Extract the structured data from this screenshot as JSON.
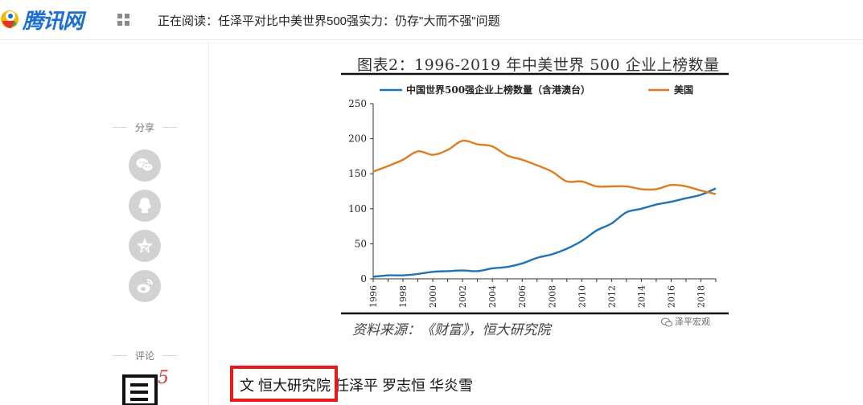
{
  "header": {
    "logo_text": "腾讯网",
    "reading_label": "正在阅读：任泽平对比中美世界500强实力：仍存\"大而不强\"问题"
  },
  "share": {
    "label": "分享",
    "buttons": [
      {
        "icon": "wechat-icon"
      },
      {
        "icon": "qq-icon"
      },
      {
        "icon": "qzone-star-icon"
      },
      {
        "icon": "weibo-icon"
      }
    ]
  },
  "comment": {
    "label": "评论",
    "count": "5"
  },
  "figure": {
    "source": "资料来源：《财富》，恒大研究院",
    "watermark": "泽平宏观"
  },
  "chart_data": {
    "type": "line",
    "title": "图表2：1996-2019 年中美世界 500 企业上榜数量",
    "x": [
      1996,
      1997,
      1998,
      1999,
      2000,
      2001,
      2002,
      2003,
      2004,
      2005,
      2006,
      2007,
      2008,
      2009,
      2010,
      2011,
      2012,
      2013,
      2014,
      2015,
      2016,
      2017,
      2018,
      2019
    ],
    "xticks": [
      "1996",
      "1998",
      "2000",
      "2002",
      "2004",
      "2006",
      "2008",
      "2010",
      "2012",
      "2014",
      "2016",
      "2018"
    ],
    "yticks": [
      "0",
      "50",
      "100",
      "150",
      "200",
      "250"
    ],
    "ylim": [
      0,
      250
    ],
    "xlim": [
      1996,
      2019
    ],
    "legend_position": "top",
    "series": [
      {
        "name": "中国世界500强企业上榜数量（含港澳台）",
        "color": "#1f73b7",
        "values": [
          3,
          5,
          5,
          7,
          10,
          11,
          12,
          11,
          15,
          17,
          22,
          30,
          35,
          43,
          54,
          69,
          79,
          95,
          100,
          106,
          110,
          115,
          120,
          129
        ]
      },
      {
        "name": "美国",
        "color": "#e07b1f",
        "values": [
          153,
          161,
          170,
          182,
          177,
          184,
          197,
          192,
          189,
          176,
          170,
          162,
          153,
          139,
          139,
          132,
          132,
          132,
          128,
          128,
          134,
          132,
          126,
          121
        ]
      }
    ]
  },
  "byline": {
    "text": "文 恒大研究院 任泽平 罗志恒 华炎雪"
  }
}
